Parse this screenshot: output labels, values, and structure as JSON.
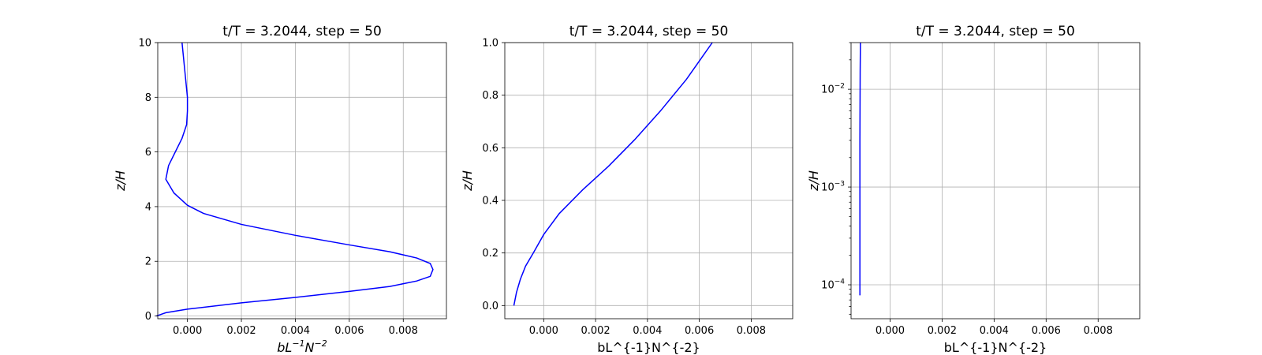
{
  "chart_data": [
    {
      "type": "line",
      "title": "t/T = 3.2044, step = 50",
      "xlabel": "bL^{-1}N^{-2}",
      "ylabel": "z/H",
      "xlabel_math": true,
      "ylabel_math": true,
      "xlim": [
        -0.0011,
        0.0096
      ],
      "ylim": [
        -0.1,
        10
      ],
      "yscale": "linear",
      "grid": true,
      "xticks": [
        0.0,
        0.002,
        0.004,
        0.006,
        0.008
      ],
      "xtick_labels": [
        "0.000",
        "0.002",
        "0.004",
        "0.006",
        "0.008"
      ],
      "yticks": [
        0,
        2,
        4,
        6,
        8,
        10
      ],
      "ytick_labels": [
        "0",
        "2",
        "4",
        "6",
        "8",
        "10"
      ],
      "series": [
        {
          "color": "#0000ff",
          "x": [
            -0.00115,
            -0.0008,
            0.0,
            0.002,
            0.004,
            0.006,
            0.0075,
            0.0085,
            0.009,
            0.0091,
            0.009,
            0.0085,
            0.0075,
            0.006,
            0.004,
            0.002,
            0.0006,
            0.0,
            -0.0005,
            -0.0008,
            -0.0007,
            -0.00045,
            -0.0002,
            -3e-05,
            0.0,
            0.0,
            -0.0001,
            -0.0002
          ],
          "y": [
            0,
            0.12,
            0.25,
            0.48,
            0.68,
            0.9,
            1.08,
            1.28,
            1.45,
            1.7,
            1.92,
            2.12,
            2.35,
            2.6,
            2.95,
            3.35,
            3.75,
            4.05,
            4.5,
            5.0,
            5.5,
            6.0,
            6.5,
            7.0,
            7.5,
            8.0,
            9.0,
            10.0
          ]
        }
      ]
    },
    {
      "type": "line",
      "title": "t/T = 3.2044, step = 50",
      "xlabel": "bL^{-1}N^{-2}",
      "ylabel": "z/H",
      "xlabel_math": false,
      "ylabel_math": true,
      "xlim": [
        -0.0015,
        0.0096
      ],
      "ylim": [
        -0.05,
        1.0
      ],
      "yscale": "linear",
      "grid": true,
      "xticks": [
        0.0,
        0.002,
        0.004,
        0.006,
        0.008
      ],
      "xtick_labels": [
        "0.000",
        "0.002",
        "0.004",
        "0.006",
        "0.008"
      ],
      "yticks": [
        0.0,
        0.2,
        0.4,
        0.6,
        0.8,
        1.0
      ],
      "ytick_labels": [
        "0.0",
        "0.2",
        "0.4",
        "0.6",
        "0.8",
        "1.0"
      ],
      "series": [
        {
          "color": "#0000ff",
          "x": [
            -0.00115,
            -0.00105,
            -0.0009,
            -0.0007,
            -0.0004,
            0.0,
            0.0006,
            0.0015,
            0.0025,
            0.0035,
            0.0045,
            0.0055,
            0.0065
          ],
          "y": [
            0.0,
            0.05,
            0.1,
            0.15,
            0.2,
            0.27,
            0.35,
            0.44,
            0.53,
            0.63,
            0.74,
            0.86,
            1.0
          ]
        }
      ]
    },
    {
      "type": "line",
      "title": "t/T = 3.2044, step = 50",
      "xlabel": "bL^{-1}N^{-2}",
      "ylabel": "z/H",
      "xlabel_math": false,
      "ylabel_math": true,
      "xlim": [
        -0.0015,
        0.0096
      ],
      "ylim": [
        4.5e-05,
        0.03
      ],
      "yscale": "log",
      "grid": true,
      "xticks": [
        0.0,
        0.002,
        0.004,
        0.006,
        0.008
      ],
      "xtick_labels": [
        "0.000",
        "0.002",
        "0.004",
        "0.006",
        "0.008"
      ],
      "yticks": [
        0.0001,
        0.001,
        0.01
      ],
      "ytick_labels": [
        "10",
        "10",
        "10"
      ],
      "ytick_exponents": [
        "−4",
        "−3",
        "−2"
      ],
      "series": [
        {
          "color": "#0000ff",
          "x": [
            -0.00116,
            -0.00116,
            -0.00116,
            -0.00115,
            -0.00114
          ],
          "y": [
            7.8e-05,
            0.0003,
            0.003,
            0.015,
            0.03
          ]
        }
      ]
    }
  ]
}
